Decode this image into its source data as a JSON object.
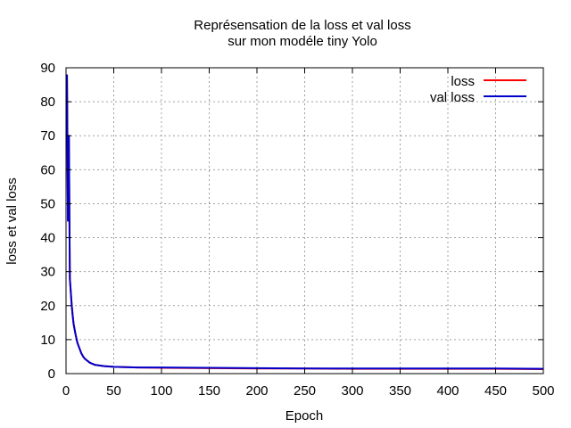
{
  "chart_data": {
    "type": "line",
    "title": [
      "Représensation de la loss et val loss",
      "sur mon modéle tiny Yolo"
    ],
    "xlabel": "Epoch",
    "ylabel": "loss et val loss",
    "xlim": [
      0,
      500
    ],
    "ylim": [
      0,
      90
    ],
    "xticks": [
      0,
      50,
      100,
      150,
      200,
      250,
      300,
      350,
      400,
      450,
      500
    ],
    "yticks": [
      0,
      10,
      20,
      30,
      40,
      50,
      60,
      70,
      80,
      90
    ],
    "grid": true,
    "legend_position": "top-right",
    "series": [
      {
        "name": "loss",
        "color": "#ff0000",
        "x": [
          1,
          2,
          3,
          4,
          5,
          6,
          7,
          8,
          9,
          10,
          12,
          14,
          16,
          18,
          20,
          25,
          30,
          40,
          50,
          75,
          100,
          150,
          200,
          250,
          300,
          350,
          400,
          450,
          500
        ],
        "y": [
          88,
          45,
          70,
          28,
          24,
          20,
          17,
          14.5,
          13,
          11.5,
          9,
          7.5,
          6,
          5,
          4.3,
          3.2,
          2.6,
          2.2,
          2.0,
          1.8,
          1.7,
          1.6,
          1.5,
          1.5,
          1.4,
          1.4,
          1.4,
          1.4,
          1.3
        ]
      },
      {
        "name": "val loss",
        "color": "#0000cc",
        "x": [
          1,
          2,
          3,
          4,
          5,
          6,
          7,
          8,
          9,
          10,
          12,
          14,
          16,
          18,
          20,
          25,
          30,
          40,
          50,
          75,
          100,
          150,
          200,
          250,
          300,
          350,
          400,
          450,
          500
        ],
        "y": [
          88,
          45,
          70,
          28,
          24,
          20,
          17,
          14.5,
          13,
          11.5,
          9,
          7.5,
          6,
          5,
          4.3,
          3.2,
          2.6,
          2.2,
          2.0,
          1.8,
          1.8,
          1.7,
          1.6,
          1.5,
          1.5,
          1.5,
          1.5,
          1.5,
          1.4
        ]
      }
    ]
  }
}
